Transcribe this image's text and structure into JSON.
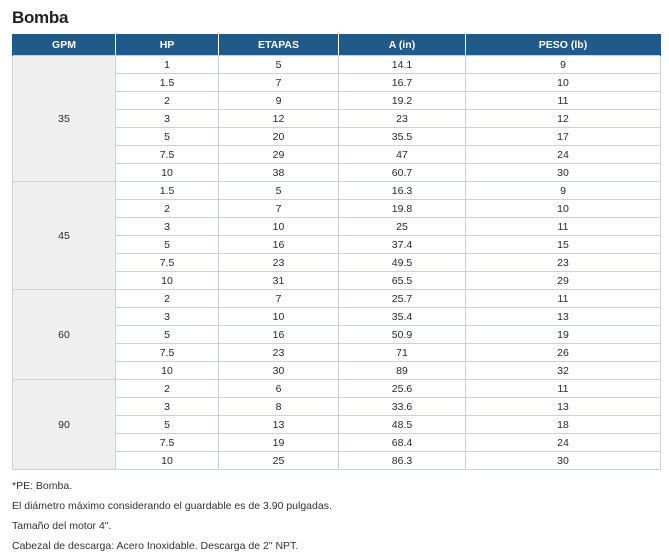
{
  "title": "Bomba",
  "table": {
    "headers": [
      "GPM",
      "HP",
      "ETAPAS",
      "A (in)",
      "PESO (lb)"
    ],
    "groups": [
      {
        "gpm": "35",
        "rows": [
          [
            "1",
            "5",
            "14.1",
            "9"
          ],
          [
            "1.5",
            "7",
            "16.7",
            "10"
          ],
          [
            "2",
            "9",
            "19.2",
            "11"
          ],
          [
            "3",
            "12",
            "23",
            "12"
          ],
          [
            "5",
            "20",
            "35.5",
            "17"
          ],
          [
            "7.5",
            "29",
            "47",
            "24"
          ],
          [
            "10",
            "38",
            "60.7",
            "30"
          ]
        ]
      },
      {
        "gpm": "45",
        "rows": [
          [
            "1.5",
            "5",
            "16.3",
            "9"
          ],
          [
            "2",
            "7",
            "19.8",
            "10"
          ],
          [
            "3",
            "10",
            "25",
            "11"
          ],
          [
            "5",
            "16",
            "37.4",
            "15"
          ],
          [
            "7.5",
            "23",
            "49.5",
            "23"
          ],
          [
            "10",
            "31",
            "65.5",
            "29"
          ]
        ]
      },
      {
        "gpm": "60",
        "rows": [
          [
            "2",
            "7",
            "25.7",
            "11"
          ],
          [
            "3",
            "10",
            "35.4",
            "13"
          ],
          [
            "5",
            "16",
            "50.9",
            "19"
          ],
          [
            "7.5",
            "23",
            "71",
            "26"
          ],
          [
            "10",
            "30",
            "89",
            "32"
          ]
        ]
      },
      {
        "gpm": "90",
        "rows": [
          [
            "2",
            "6",
            "25.6",
            "11"
          ],
          [
            "3",
            "8",
            "33.6",
            "13"
          ],
          [
            "5",
            "13",
            "48.5",
            "18"
          ],
          [
            "7.5",
            "19",
            "68.4",
            "24"
          ],
          [
            "10",
            "25",
            "86.3",
            "30"
          ]
        ]
      }
    ]
  },
  "notes": [
    "*PE: Bomba.",
    "El diámetro máximo considerando el guardable es de 3.90 pulgadas.",
    "Tamaño del motor 4\".",
    "Cabezal de descarga: Acero Inoxidable. Descarga de 2\" NPT."
  ]
}
